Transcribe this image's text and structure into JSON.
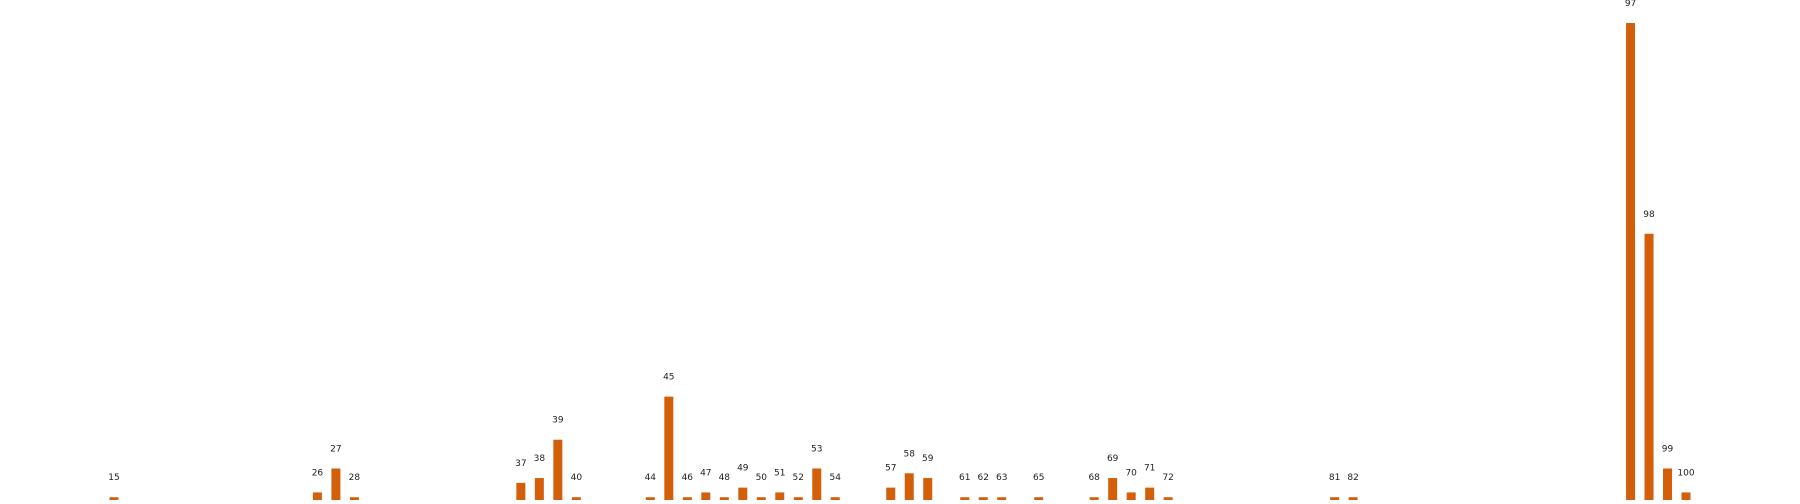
{
  "chart_data": {
    "type": "bar",
    "x": [
      15,
      26,
      27,
      28,
      37,
      38,
      39,
      40,
      44,
      45,
      46,
      47,
      48,
      49,
      50,
      51,
      52,
      53,
      54,
      57,
      58,
      59,
      61,
      62,
      63,
      65,
      68,
      69,
      70,
      71,
      72,
      81,
      82,
      97,
      98,
      99,
      100
    ],
    "values": [
      1,
      2,
      7,
      1,
      4,
      5,
      13,
      1,
      1,
      22,
      1,
      2,
      1,
      3,
      1,
      2,
      1,
      7,
      1,
      3,
      6,
      5,
      1,
      1,
      1,
      1,
      1,
      5,
      2,
      3,
      1,
      1,
      1,
      100,
      56,
      7,
      2
    ],
    "data_labels": [
      "15",
      "26",
      "27",
      "28",
      "37",
      "38",
      "39",
      "40",
      "44",
      "45",
      "46",
      "47",
      "48",
      "49",
      "50",
      "51",
      "52",
      "53",
      "54",
      "57",
      "58",
      "59",
      "61",
      "62",
      "63",
      "65",
      "68",
      "69",
      "70",
      "71",
      "72",
      "81",
      "82",
      "97",
      "98",
      "99",
      "100"
    ],
    "title": "",
    "xlabel": "",
    "ylabel": "",
    "xlim": [
      11,
      104
    ],
    "ylim": [
      0,
      100
    ],
    "grid": false,
    "axes_visible": false,
    "bar_color": "#d35f0a"
  }
}
